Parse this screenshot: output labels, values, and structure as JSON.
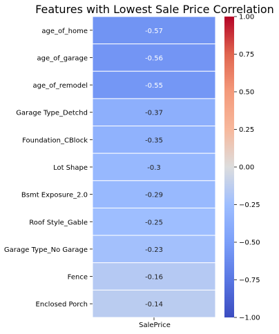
{
  "chart_data": {
    "type": "heatmap",
    "title": "Features with Lowest Sale Price Correlation",
    "columns": [
      "SalePrice"
    ],
    "rows": [
      "age_of_home",
      "age_of_garage",
      "age_of_remodel",
      "Garage Type_Detchd",
      "Foundation_CBlock",
      "Lot Shape",
      "Bsmt Exposure_2.0",
      "Roof Style_Gable",
      "Garage Type_No Garage",
      "Fence",
      "Enclosed Porch"
    ],
    "values": [
      -0.57,
      -0.56,
      -0.55,
      -0.37,
      -0.35,
      -0.3,
      -0.29,
      -0.25,
      -0.23,
      -0.16,
      -0.14
    ],
    "value_labels": [
      "-0.57",
      "-0.56",
      "-0.55",
      "-0.37",
      "-0.35",
      "-0.3",
      "-0.29",
      "-0.25",
      "-0.23",
      "-0.16",
      "-0.14"
    ],
    "colorbar": {
      "range": [
        -1.0,
        1.0
      ],
      "colormap": "coolwarm",
      "ticks": [
        1.0,
        0.75,
        0.5,
        0.25,
        0.0,
        -0.25,
        -0.5,
        -0.75,
        -1.0
      ],
      "tick_labels": [
        "1.00",
        "0.75",
        "0.50",
        "0.25",
        "0.00",
        "−0.25",
        "−0.50",
        "−0.75",
        "−1.00"
      ]
    }
  }
}
